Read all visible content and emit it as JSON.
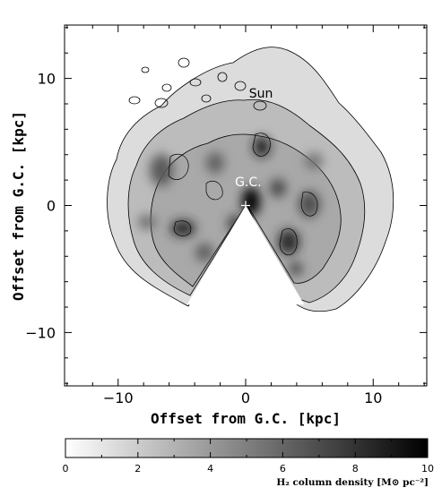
{
  "chart_data": {
    "type": "heatmap",
    "xlabel": "Offset from G.C. [kpc]",
    "ylabel": "Offset from G.C. [kpc]",
    "xlim": [
      -14.2,
      14.2
    ],
    "ylim": [
      -14.2,
      14.2
    ],
    "x_ticks": [
      "−10",
      "0",
      "10"
    ],
    "x_tick_values": [
      -10,
      0,
      10
    ],
    "y_ticks": [
      "10",
      "0",
      "−10"
    ],
    "y_tick_values": [
      10,
      0,
      -10
    ],
    "annotations": [
      {
        "text": "Sun",
        "x": 1.2,
        "y": 8.5
      },
      {
        "text": "G.C.",
        "x": 0.2,
        "y": 1.5
      }
    ],
    "galactic_center_marker": {
      "x": 0,
      "y": 0
    },
    "excluded_wedge": {
      "apex": [
        0,
        0
      ],
      "left_corner": [
        -4.6,
        -7.8
      ],
      "right_corner": [
        4.6,
        -7.8
      ]
    },
    "colorbar": {
      "label": "H₂ column density [M⊙ pc⁻²]",
      "range": [
        0,
        10
      ],
      "ticks": [
        "0",
        "2",
        "4",
        "6",
        "8",
        "10"
      ],
      "tick_values": [
        0,
        2,
        4,
        6,
        8,
        10
      ],
      "colormap": [
        "#ffffff",
        "#000000"
      ]
    },
    "high_density_regions": [
      {
        "x": -4.8,
        "y": 2.5,
        "density": 5.5
      },
      {
        "x": -3.0,
        "y": -1.5,
        "density": 7.0
      },
      {
        "x": -2.5,
        "y": 3.0,
        "density": 5.0
      },
      {
        "x": 1.2,
        "y": 4.5,
        "density": 9.5
      },
      {
        "x": 0.5,
        "y": 0.5,
        "density": 10.0
      },
      {
        "x": 2.5,
        "y": 1.0,
        "density": 6.0
      },
      {
        "x": 3.5,
        "y": -2.5,
        "density": 8.5
      },
      {
        "x": 5.0,
        "y": 0.0,
        "density": 5.0
      },
      {
        "x": -5.5,
        "y": -1.5,
        "density": 4.0
      },
      {
        "x": -1.5,
        "y": 5.0,
        "density": 4.0
      },
      {
        "x": 3.5,
        "y": 5.0,
        "density": 3.5
      },
      {
        "x": -3.0,
        "y": -4.0,
        "density": 4.5
      }
    ]
  }
}
